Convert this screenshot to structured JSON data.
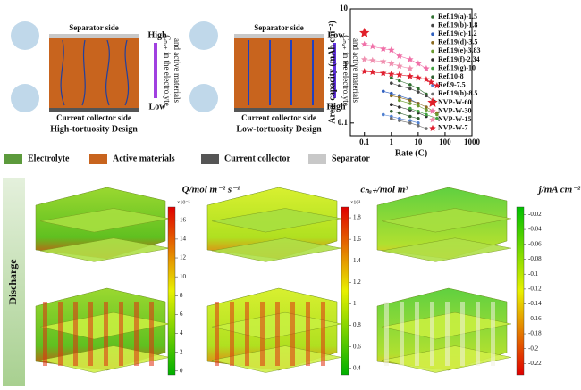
{
  "schematics": [
    {
      "top": "Separator side",
      "bottom": "Current collector side",
      "caption": "High-tortuosity Design",
      "axis_top": "High",
      "axis_bottom": "Low",
      "axis_label": [
        "Cₙₐ₊ in the electrolyte",
        "and active materials"
      ]
    },
    {
      "top": "Separator side",
      "bottom": "Current collector side",
      "caption": "Low-tortuosity Design",
      "axis_top": "Low",
      "axis_bottom": "High",
      "axis_label": [
        "Cₙₐ₊ in the electrolyte",
        "and active materials"
      ]
    }
  ],
  "legend": [
    {
      "label": "Electrolyte",
      "color": "#5c9a3c"
    },
    {
      "label": "Active materials",
      "color": "#c8641e"
    },
    {
      "label": "Current collector",
      "color": "#555555"
    },
    {
      "label": "Separator",
      "color": "#c8c8c8"
    }
  ],
  "chart_data": {
    "type": "scatter",
    "xlabel": "Rate (C)",
    "ylabel": "Areal capacity (mAh cm⁻²)",
    "log_x": true,
    "log_y": true,
    "xlim": [
      0.03,
      1000
    ],
    "xticks": [
      0.1,
      1,
      10,
      100,
      1000
    ],
    "ylim": [
      0.06,
      10
    ],
    "yticks": [
      0.1,
      1,
      10
    ],
    "series": [
      {
        "name": "Ref.19(a)-1.5",
        "color": "#2f6f2f",
        "marker": "dot",
        "x": [
          1,
          2,
          5,
          10,
          20
        ],
        "values": [
          0.62,
          0.55,
          0.47,
          0.4,
          0.32
        ]
      },
      {
        "name": "Ref.19(b)-1.8",
        "color": "#444444",
        "marker": "dot",
        "x": [
          1,
          2,
          5,
          10,
          20,
          40
        ],
        "values": [
          0.5,
          0.45,
          0.4,
          0.35,
          0.3,
          0.24
        ]
      },
      {
        "name": "Ref.19(c)-1.2",
        "color": "#3060c0",
        "marker": "dot",
        "x": [
          0.5,
          1,
          2,
          5,
          10
        ],
        "values": [
          0.36,
          0.33,
          0.3,
          0.26,
          0.22
        ]
      },
      {
        "name": "Ref.19(d)-3.5",
        "color": "#8a6a20",
        "marker": "dot",
        "x": [
          1,
          2,
          5,
          10,
          20,
          50
        ],
        "values": [
          0.3,
          0.28,
          0.25,
          0.22,
          0.19,
          0.15
        ]
      },
      {
        "name": "Ref.19(e)-3.83",
        "color": "#6a9a30",
        "marker": "dot",
        "x": [
          2,
          5,
          10,
          20,
          50
        ],
        "values": [
          0.25,
          0.22,
          0.2,
          0.17,
          0.14
        ]
      },
      {
        "name": "Ref.19(f)-2.34",
        "color": "#2a2a2a",
        "marker": "dot",
        "x": [
          1,
          2,
          5,
          10,
          20
        ],
        "values": [
          0.21,
          0.19,
          0.17,
          0.15,
          0.13
        ]
      },
      {
        "name": "Ref.19(g)-10",
        "color": "#40a040",
        "marker": "dot",
        "x": [
          5,
          10,
          20,
          50
        ],
        "values": [
          0.18,
          0.16,
          0.14,
          0.12
        ]
      },
      {
        "name": "Ref.10-8",
        "color": "#306030",
        "marker": "dot",
        "x": [
          1,
          2,
          5,
          10
        ],
        "values": [
          0.16,
          0.15,
          0.13,
          0.12
        ]
      },
      {
        "name": "Ref.9-7.5",
        "color": "#5080d0",
        "marker": "dot",
        "x": [
          0.5,
          1,
          2,
          5,
          10
        ],
        "values": [
          0.14,
          0.13,
          0.12,
          0.11,
          0.1
        ]
      },
      {
        "name": "Ref.19(h)-8.5",
        "color": "#707070",
        "marker": "dot",
        "x": [
          1,
          2,
          5,
          10,
          20
        ],
        "values": [
          0.12,
          0.11,
          0.1,
          0.09,
          0.08
        ]
      },
      {
        "name": "NVP-W-60",
        "color": "#e0202a",
        "marker": "bigstar",
        "x": [
          0.1
        ],
        "values": [
          3.8
        ]
      },
      {
        "name": "NVP-W-30",
        "color": "#f070a8",
        "marker": "star",
        "x": [
          0.1,
          0.2,
          0.5,
          1,
          2,
          5,
          10,
          20
        ],
        "values": [
          2.4,
          2.2,
          2.0,
          1.9,
          1.5,
          1.3,
          1.1,
          0.9
        ]
      },
      {
        "name": "NVP-W-15",
        "color": "#f090b0",
        "marker": "star",
        "x": [
          0.1,
          0.2,
          0.5,
          1,
          2,
          5
        ],
        "values": [
          1.3,
          1.25,
          1.2,
          1.1,
          1.0,
          0.9
        ]
      },
      {
        "name": "NVP-W-7",
        "color": "#e02030",
        "marker": "star",
        "x": [
          0.1,
          0.2,
          0.5,
          1,
          2,
          5,
          10,
          20,
          30,
          50
        ],
        "values": [
          0.8,
          0.78,
          0.75,
          0.72,
          0.7,
          0.66,
          0.62,
          0.58,
          0.52,
          0.45
        ]
      }
    ]
  },
  "side_label": "Discharge",
  "colorbars": [
    {
      "title": "Q/mol m⁻² s⁻¹",
      "multiplier": "×10⁻⁵",
      "lim": [
        -0.4,
        17.4
      ],
      "ticks": [
        16,
        14,
        12,
        10,
        8,
        6,
        4,
        2,
        0
      ]
    },
    {
      "title": "cₙₐ₊/mol m³",
      "multiplier": "×10³",
      "lim": [
        0.34,
        1.9
      ],
      "ticks": [
        1.8,
        1.6,
        1.4,
        1.2,
        1,
        0.8,
        0.6,
        0.4
      ]
    },
    {
      "title": "j/mA cm⁻²",
      "multiplier": null,
      "lim": [
        -0.235,
        -0.01
      ],
      "ticks": [
        -0.02,
        -0.04,
        -0.06,
        -0.08,
        -0.1,
        -0.12,
        -0.14,
        -0.16,
        -0.18,
        -0.2,
        -0.22
      ]
    }
  ]
}
